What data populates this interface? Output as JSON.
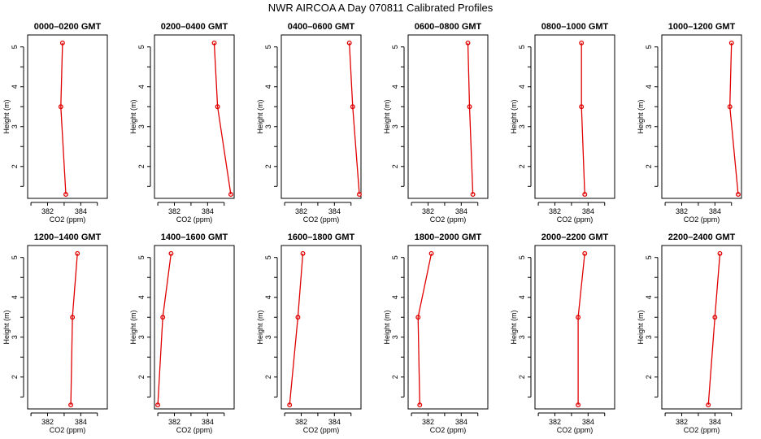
{
  "figure": {
    "title": "NWR AIRCOA A  Day 070811  Calibrated Profiles"
  },
  "colors": {
    "line": "#e00000",
    "axes": "#000000",
    "background": "#ffffff"
  },
  "chart_data": [
    {
      "type": "line",
      "title": "0000–0200 GMT",
      "xlabel": "CO2 (ppm)",
      "ylabel": "Height (m)",
      "xlim": [
        380.8,
        385.6
      ],
      "ylim": [
        1.2,
        5.3
      ],
      "xticks": [
        "382",
        "384"
      ],
      "yticks": [
        "2",
        "3",
        "4",
        "5"
      ],
      "grid": false,
      "series": [
        {
          "x": [
            383.1,
            382.8,
            382.9
          ],
          "y": [
            1.3,
            3.5,
            5.1
          ]
        }
      ]
    },
    {
      "type": "line",
      "title": "0200–0400 GMT",
      "xlabel": "CO2 (ppm)",
      "ylabel": "Height (m)",
      "xlim": [
        380.8,
        385.6
      ],
      "ylim": [
        1.2,
        5.3
      ],
      "xticks": [
        "382",
        "384"
      ],
      "yticks": [
        "2",
        "3",
        "4",
        "5"
      ],
      "grid": false,
      "series": [
        {
          "x": [
            385.4,
            384.6,
            384.4
          ],
          "y": [
            1.3,
            3.5,
            5.1
          ]
        }
      ]
    },
    {
      "type": "line",
      "title": "0400–0600 GMT",
      "xlabel": "CO2 (ppm)",
      "ylabel": "Height (m)",
      "xlim": [
        380.8,
        385.6
      ],
      "ylim": [
        1.2,
        5.3
      ],
      "xticks": [
        "382",
        "384"
      ],
      "yticks": [
        "2",
        "3",
        "4",
        "5"
      ],
      "grid": false,
      "series": [
        {
          "x": [
            385.5,
            385.1,
            384.9
          ],
          "y": [
            1.3,
            3.5,
            5.1
          ]
        }
      ]
    },
    {
      "type": "line",
      "title": "0600–0800 GMT",
      "xlabel": "CO2 (ppm)",
      "ylabel": "Height (m)",
      "xlim": [
        380.8,
        385.6
      ],
      "ylim": [
        1.2,
        5.3
      ],
      "xticks": [
        "382",
        "384"
      ],
      "yticks": [
        "2",
        "3",
        "4",
        "5"
      ],
      "grid": false,
      "series": [
        {
          "x": [
            384.7,
            384.5,
            384.4
          ],
          "y": [
            1.3,
            3.5,
            5.1
          ]
        }
      ]
    },
    {
      "type": "line",
      "title": "0800–1000 GMT",
      "xlabel": "CO2 (ppm)",
      "ylabel": "Height (m)",
      "xlim": [
        380.8,
        385.6
      ],
      "ylim": [
        1.2,
        5.3
      ],
      "xticks": [
        "382",
        "384"
      ],
      "yticks": [
        "2",
        "3",
        "4",
        "5"
      ],
      "grid": false,
      "series": [
        {
          "x": [
            383.8,
            383.6,
            383.6
          ],
          "y": [
            1.3,
            3.5,
            5.1
          ]
        }
      ]
    },
    {
      "type": "line",
      "title": "1000–1200 GMT",
      "xlabel": "CO2 (ppm)",
      "ylabel": "Height (m)",
      "xlim": [
        380.8,
        385.6
      ],
      "ylim": [
        1.2,
        5.3
      ],
      "xticks": [
        "382",
        "384"
      ],
      "yticks": [
        "2",
        "3",
        "4",
        "5"
      ],
      "grid": false,
      "series": [
        {
          "x": [
            385.4,
            384.9,
            385.0
          ],
          "y": [
            1.3,
            3.5,
            5.1
          ]
        }
      ]
    },
    {
      "type": "line",
      "title": "1200–1400 GMT",
      "xlabel": "CO2 (ppm)",
      "ylabel": "Height (m)",
      "xlim": [
        380.8,
        385.6
      ],
      "ylim": [
        1.2,
        5.3
      ],
      "xticks": [
        "382",
        "384"
      ],
      "yticks": [
        "2",
        "3",
        "4",
        "5"
      ],
      "grid": false,
      "series": [
        {
          "x": [
            383.4,
            383.5,
            383.8
          ],
          "y": [
            1.3,
            3.5,
            5.1
          ]
        }
      ]
    },
    {
      "type": "line",
      "title": "1400–1600 GMT",
      "xlabel": "CO2 (ppm)",
      "ylabel": "Height (m)",
      "xlim": [
        380.8,
        385.6
      ],
      "ylim": [
        1.2,
        5.3
      ],
      "xticks": [
        "382",
        "384"
      ],
      "yticks": [
        "2",
        "3",
        "4",
        "5"
      ],
      "grid": false,
      "series": [
        {
          "x": [
            381.0,
            381.3,
            381.8
          ],
          "y": [
            1.3,
            3.5,
            5.1
          ]
        }
      ]
    },
    {
      "type": "line",
      "title": "1600–1800 GMT",
      "xlabel": "CO2 (ppm)",
      "ylabel": "Height (m)",
      "xlim": [
        380.8,
        385.6
      ],
      "ylim": [
        1.2,
        5.3
      ],
      "xticks": [
        "382",
        "384"
      ],
      "yticks": [
        "2",
        "3",
        "4",
        "5"
      ],
      "grid": false,
      "series": [
        {
          "x": [
            381.3,
            381.8,
            382.1
          ],
          "y": [
            1.3,
            3.5,
            5.1
          ]
        }
      ]
    },
    {
      "type": "line",
      "title": "1800–2000 GMT",
      "xlabel": "CO2 (ppm)",
      "ylabel": "Height (m)",
      "xlim": [
        380.8,
        385.6
      ],
      "ylim": [
        1.2,
        5.3
      ],
      "xticks": [
        "382",
        "384"
      ],
      "yticks": [
        "2",
        "3",
        "4",
        "5"
      ],
      "grid": false,
      "series": [
        {
          "x": [
            381.5,
            381.4,
            382.2
          ],
          "y": [
            1.3,
            3.5,
            5.1
          ]
        }
      ]
    },
    {
      "type": "line",
      "title": "2000–2200 GMT",
      "xlabel": "CO2 (ppm)",
      "ylabel": "Height (m)",
      "xlim": [
        380.8,
        385.6
      ],
      "ylim": [
        1.2,
        5.3
      ],
      "xticks": [
        "382",
        "384"
      ],
      "yticks": [
        "2",
        "3",
        "4",
        "5"
      ],
      "grid": false,
      "series": [
        {
          "x": [
            383.4,
            383.4,
            383.8
          ],
          "y": [
            1.3,
            3.5,
            5.1
          ]
        }
      ]
    },
    {
      "type": "line",
      "title": "2200–2400 GMT",
      "xlabel": "CO2 (ppm)",
      "ylabel": "Height (m)",
      "xlim": [
        380.8,
        385.6
      ],
      "ylim": [
        1.2,
        5.3
      ],
      "xticks": [
        "382",
        "384"
      ],
      "yticks": [
        "2",
        "3",
        "4",
        "5"
      ],
      "grid": false,
      "series": [
        {
          "x": [
            383.6,
            384.0,
            384.3
          ],
          "y": [
            1.3,
            3.5,
            5.1
          ]
        }
      ]
    }
  ]
}
